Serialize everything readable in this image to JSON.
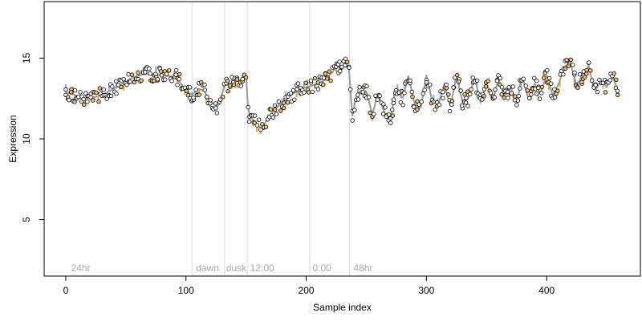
{
  "chart_data": {
    "type": "scatter",
    "title": "",
    "xlabel": "Sample index",
    "ylabel": "Expression",
    "xlim": [
      -18,
      478
    ],
    "ylim": [
      1.5,
      18.5
    ],
    "x_ticks": [
      0,
      100,
      200,
      300,
      400
    ],
    "y_ticks": [
      5,
      10,
      15
    ],
    "grid": false,
    "legend": "none",
    "colors": {
      "point_fill": "#ffffff",
      "point_stroke": "#000000",
      "highlight_fill": "#f5c06b",
      "trend_line": "#999999",
      "segment_up": "#7fa6dc",
      "segment_down": "#e8a33a",
      "vline": "#dddddd",
      "annotation": "#a8a8a8"
    },
    "vlines": [
      105,
      132,
      151,
      203,
      236
    ],
    "annotations": [
      {
        "x": 3,
        "text": "24hr"
      },
      {
        "x": 107,
        "text": "dawn"
      },
      {
        "x": 132,
        "text": "dusk"
      },
      {
        "x": 152,
        "text": "12:00"
      },
      {
        "x": 204,
        "text": "0:00"
      },
      {
        "x": 238,
        "text": "48hr"
      }
    ],
    "anchors": [
      [
        0,
        12.9
      ],
      [
        8,
        12.7
      ],
      [
        15,
        12.5
      ],
      [
        25,
        12.6
      ],
      [
        35,
        12.9
      ],
      [
        45,
        13.3
      ],
      [
        55,
        13.8
      ],
      [
        65,
        14.0
      ],
      [
        75,
        14.0
      ],
      [
        85,
        13.9
      ],
      [
        92,
        13.8
      ],
      [
        100,
        13.0
      ],
      [
        105,
        12.7
      ],
      [
        110,
        13.1
      ],
      [
        115,
        13.0
      ],
      [
        120,
        12.3
      ],
      [
        127,
        12.0
      ],
      [
        132,
        13.3
      ],
      [
        140,
        13.5
      ],
      [
        150,
        13.8
      ],
      [
        152,
        11.5
      ],
      [
        158,
        11.0
      ],
      [
        163,
        10.6
      ],
      [
        168,
        11.3
      ],
      [
        175,
        11.9
      ],
      [
        185,
        12.6
      ],
      [
        195,
        13.1
      ],
      [
        205,
        13.3
      ],
      [
        215,
        13.6
      ],
      [
        225,
        14.4
      ],
      [
        233,
        14.6
      ],
      [
        236,
        14.4
      ],
      [
        238,
        11.2
      ],
      [
        242,
        12.8
      ],
      [
        250,
        13.0
      ],
      [
        255,
        11.5
      ],
      [
        260,
        12.9
      ],
      [
        265,
        11.6
      ],
      [
        270,
        11.2
      ],
      [
        275,
        13.3
      ],
      [
        280,
        12.4
      ],
      [
        285,
        13.9
      ],
      [
        290,
        12.2
      ],
      [
        295,
        11.8
      ],
      [
        300,
        13.9
      ],
      [
        305,
        12.3
      ],
      [
        310,
        12.2
      ],
      [
        315,
        13.3
      ],
      [
        320,
        12.0
      ],
      [
        325,
        13.9
      ],
      [
        330,
        12.3
      ],
      [
        335,
        12.5
      ],
      [
        340,
        13.8
      ],
      [
        345,
        12.3
      ],
      [
        350,
        13.5
      ],
      [
        355,
        12.3
      ],
      [
        360,
        13.7
      ],
      [
        365,
        12.6
      ],
      [
        370,
        13.2
      ],
      [
        375,
        12.3
      ],
      [
        380,
        13.8
      ],
      [
        385,
        12.4
      ],
      [
        390,
        13.4
      ],
      [
        395,
        12.8
      ],
      [
        400,
        14.0
      ],
      [
        405,
        12.7
      ],
      [
        410,
        13.4
      ],
      [
        415,
        14.5
      ],
      [
        420,
        14.6
      ],
      [
        425,
        13.3
      ],
      [
        430,
        14.0
      ],
      [
        435,
        14.5
      ],
      [
        440,
        12.9
      ],
      [
        445,
        13.6
      ],
      [
        450,
        13.2
      ],
      [
        455,
        13.9
      ],
      [
        460,
        12.8
      ]
    ]
  }
}
